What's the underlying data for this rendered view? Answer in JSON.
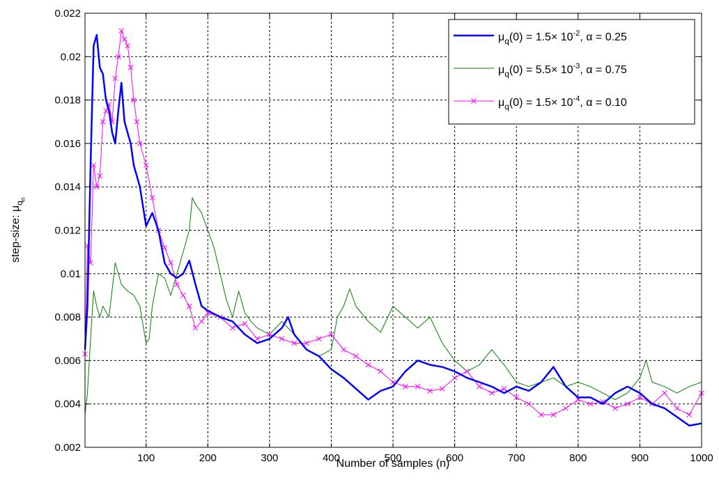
{
  "chart_data": {
    "type": "line",
    "title": "",
    "xlabel": "Number of samples (n)",
    "ylabel": "step-size: μ",
    "ylabel_sub": "q",
    "ylabel_subsub": "n",
    "xlim": [
      1,
      1000
    ],
    "ylim": [
      0.002,
      0.022
    ],
    "xticks": [
      100,
      200,
      300,
      400,
      500,
      600,
      700,
      800,
      900,
      1000
    ],
    "yticks": [
      0.002,
      0.004,
      0.006,
      0.008,
      0.01,
      0.012,
      0.014,
      0.016,
      0.018,
      0.02,
      0.022
    ],
    "ytick_labels": [
      "0.002",
      "0.004",
      "0.006",
      "0.008",
      "0.01",
      "0.012",
      "0.014",
      "0.016",
      "0.018",
      "0.02",
      "0.022"
    ],
    "grid": true,
    "legend_position": "top-right",
    "series": [
      {
        "legend": {
          "mu": "μ",
          "sub": "q",
          "mid": "(0) = 1.5× 10",
          "exp": "-2",
          "tail": ", α = 0.25"
        },
        "color": "#0000ff",
        "width": 2.5,
        "marker": "none",
        "x": [
          1,
          5,
          10,
          15,
          20,
          25,
          30,
          35,
          40,
          45,
          50,
          55,
          60,
          65,
          70,
          75,
          80,
          90,
          100,
          110,
          120,
          130,
          140,
          150,
          160,
          170,
          180,
          190,
          200,
          220,
          240,
          260,
          280,
          300,
          320,
          330,
          340,
          360,
          380,
          400,
          420,
          440,
          460,
          480,
          500,
          520,
          540,
          560,
          580,
          600,
          620,
          640,
          660,
          680,
          700,
          720,
          740,
          760,
          780,
          800,
          820,
          840,
          860,
          880,
          900,
          920,
          940,
          960,
          980,
          1000
        ],
        "y": [
          0.0065,
          0.0085,
          0.015,
          0.0205,
          0.021,
          0.0195,
          0.0192,
          0.018,
          0.0175,
          0.0165,
          0.016,
          0.0175,
          0.0188,
          0.017,
          0.0165,
          0.016,
          0.015,
          0.014,
          0.0122,
          0.0128,
          0.012,
          0.0105,
          0.01,
          0.0098,
          0.01,
          0.0106,
          0.0095,
          0.0085,
          0.0083,
          0.008,
          0.0078,
          0.0072,
          0.0068,
          0.007,
          0.0075,
          0.008,
          0.0072,
          0.0065,
          0.0062,
          0.0056,
          0.0052,
          0.0047,
          0.0042,
          0.0046,
          0.0048,
          0.0055,
          0.006,
          0.0058,
          0.0057,
          0.0055,
          0.0052,
          0.005,
          0.0048,
          0.0045,
          0.0048,
          0.0046,
          0.005,
          0.0057,
          0.0048,
          0.0043,
          0.0043,
          0.004,
          0.0045,
          0.0048,
          0.0045,
          0.004,
          0.0038,
          0.0034,
          0.003,
          0.0031
        ]
      },
      {
        "legend": {
          "mu": "μ",
          "sub": "q",
          "mid": "(0) = 5.5× 10",
          "exp": "-3",
          "tail": ", α = 0.75"
        },
        "color": "#008000",
        "width": 1,
        "marker": "none",
        "x": [
          1,
          5,
          10,
          15,
          20,
          25,
          30,
          40,
          50,
          60,
          70,
          80,
          90,
          100,
          105,
          110,
          120,
          130,
          140,
          150,
          160,
          170,
          175,
          180,
          190,
          200,
          210,
          220,
          230,
          240,
          250,
          260,
          270,
          280,
          300,
          320,
          340,
          360,
          380,
          400,
          410,
          420,
          430,
          440,
          460,
          480,
          500,
          520,
          540,
          560,
          580,
          600,
          620,
          640,
          660,
          680,
          700,
          720,
          740,
          760,
          780,
          800,
          820,
          840,
          860,
          880,
          900,
          910,
          920,
          940,
          960,
          980,
          1000
        ],
        "y": [
          0.0035,
          0.0045,
          0.007,
          0.0092,
          0.0085,
          0.008,
          0.0085,
          0.008,
          0.0105,
          0.0095,
          0.0092,
          0.009,
          0.0085,
          0.0068,
          0.007,
          0.0085,
          0.01,
          0.0098,
          0.009,
          0.01,
          0.011,
          0.012,
          0.0135,
          0.0132,
          0.0128,
          0.012,
          0.0112,
          0.01,
          0.0088,
          0.008,
          0.0092,
          0.0082,
          0.0078,
          0.0075,
          0.0072,
          0.0078,
          0.0072,
          0.0065,
          0.0062,
          0.0065,
          0.008,
          0.0085,
          0.0093,
          0.0085,
          0.0078,
          0.0073,
          0.0085,
          0.008,
          0.0075,
          0.008,
          0.0068,
          0.006,
          0.0055,
          0.0058,
          0.0065,
          0.0058,
          0.005,
          0.0048,
          0.005,
          0.0052,
          0.0048,
          0.005,
          0.0048,
          0.0045,
          0.0042,
          0.0045,
          0.0052,
          0.006,
          0.005,
          0.0048,
          0.0045,
          0.0048,
          0.005
        ]
      },
      {
        "legend": {
          "mu": "μ",
          "sub": "q",
          "mid": "(0) = 1.5× 10",
          "exp": "-4",
          "tail": ", α = 0.10"
        },
        "color": "#ff00ff",
        "width": 1,
        "marker": "x",
        "x": [
          1,
          5,
          10,
          15,
          20,
          25,
          30,
          35,
          40,
          45,
          50,
          55,
          60,
          65,
          70,
          75,
          80,
          85,
          90,
          100,
          110,
          120,
          130,
          140,
          150,
          160,
          170,
          180,
          190,
          200,
          220,
          240,
          260,
          280,
          300,
          320,
          340,
          360,
          380,
          400,
          420,
          440,
          460,
          480,
          500,
          520,
          540,
          560,
          580,
          600,
          620,
          640,
          660,
          680,
          700,
          720,
          740,
          760,
          780,
          800,
          820,
          840,
          860,
          880,
          900,
          920,
          940,
          960,
          980,
          1000
        ],
        "y": [
          0.0063,
          0.0113,
          0.0105,
          0.015,
          0.014,
          0.0145,
          0.017,
          0.0175,
          0.0178,
          0.017,
          0.019,
          0.02,
          0.0212,
          0.0208,
          0.0205,
          0.0195,
          0.018,
          0.017,
          0.016,
          0.015,
          0.0135,
          0.012,
          0.0112,
          0.0105,
          0.0095,
          0.009,
          0.0085,
          0.0075,
          0.0078,
          0.0082,
          0.008,
          0.0075,
          0.0077,
          0.007,
          0.0072,
          0.007,
          0.0068,
          0.0068,
          0.007,
          0.0072,
          0.0065,
          0.0062,
          0.0058,
          0.0055,
          0.005,
          0.0048,
          0.0048,
          0.0046,
          0.0047,
          0.0052,
          0.0055,
          0.0048,
          0.0045,
          0.0047,
          0.0043,
          0.004,
          0.0035,
          0.0035,
          0.0038,
          0.0042,
          0.004,
          0.0041,
          0.0038,
          0.004,
          0.0043,
          0.004,
          0.0045,
          0.0038,
          0.0035,
          0.0045
        ]
      }
    ]
  }
}
